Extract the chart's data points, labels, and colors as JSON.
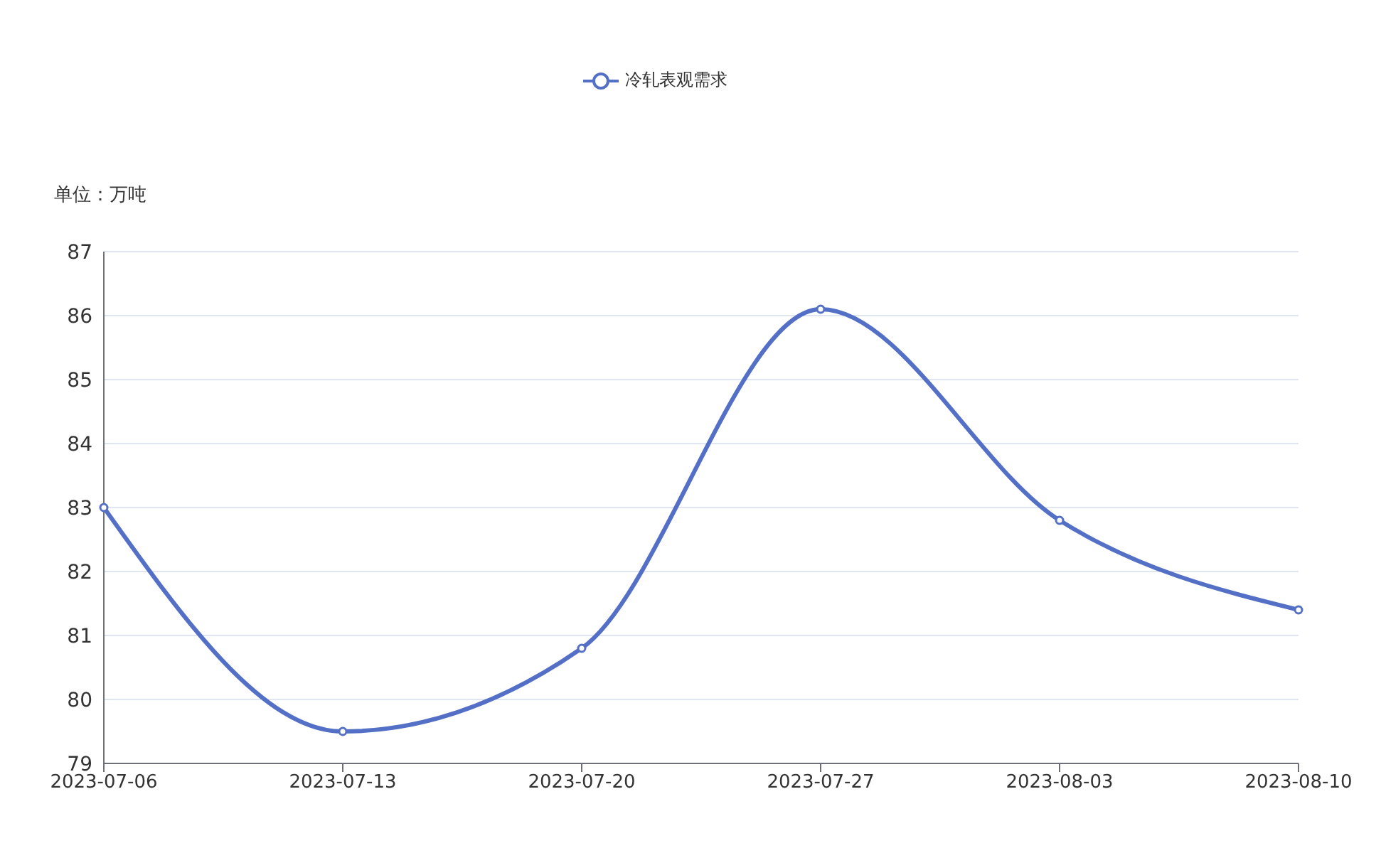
{
  "chart_data": {
    "type": "line",
    "ylabel": "单位：万吨",
    "categories": [
      "2023-07-06",
      "2023-07-13",
      "2023-07-20",
      "2023-07-27",
      "2023-08-03",
      "2023-08-10"
    ],
    "series": [
      {
        "name": "冷轧表观需求",
        "color": "#5470c6",
        "values": [
          83.0,
          79.5,
          80.8,
          86.1,
          82.8,
          81.4
        ]
      }
    ],
    "ylim": [
      79,
      87
    ],
    "yticks": [
      79,
      80,
      81,
      82,
      83,
      84,
      85,
      86,
      87
    ],
    "grid": "y",
    "legend": "top",
    "marker": "circle",
    "line_style": "solid"
  }
}
